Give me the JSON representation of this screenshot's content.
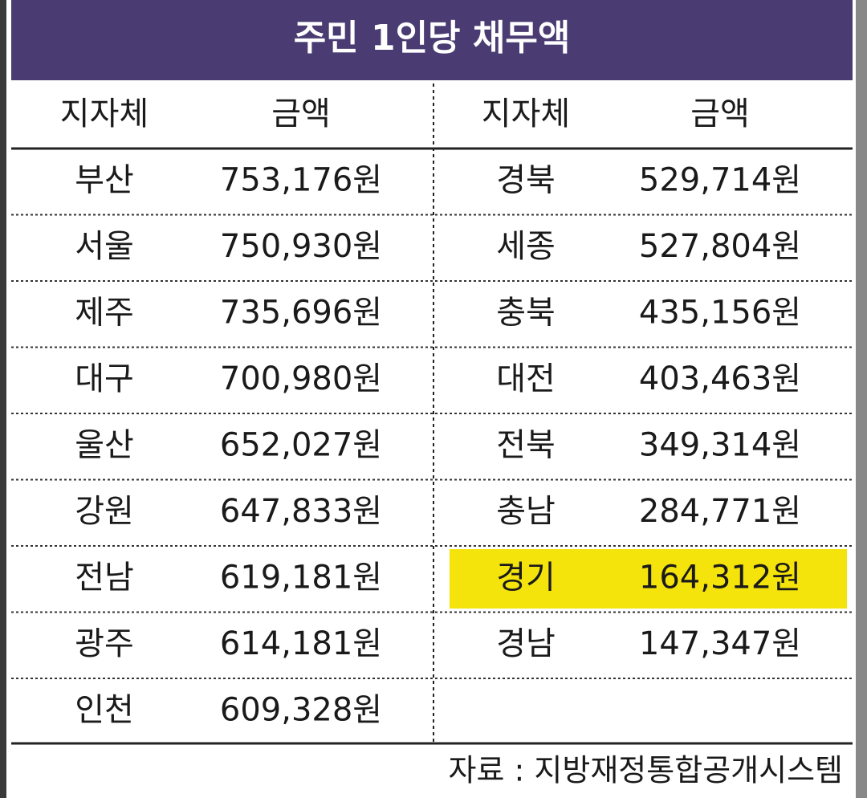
{
  "title": "주민 1인당 채무액",
  "header": [
    "지자체",
    "금액",
    "지자체",
    "금액"
  ],
  "left": [
    {
      "region": "부산",
      "amount": "753,176원"
    },
    {
      "region": "서울",
      "amount": "750,930원"
    },
    {
      "region": "제주",
      "amount": "735,696원"
    },
    {
      "region": "대구",
      "amount": "700,980원"
    },
    {
      "region": "울산",
      "amount": "652,027원"
    },
    {
      "region": "강원",
      "amount": "647,833원"
    },
    {
      "region": "전남",
      "amount": "619,181원"
    },
    {
      "region": "광주",
      "amount": "614,181원"
    },
    {
      "region": "인천",
      "amount": "609,328원"
    }
  ],
  "right": [
    {
      "region": "경북",
      "amount": "529,714원"
    },
    {
      "region": "세종",
      "amount": "527,804원"
    },
    {
      "region": "충북",
      "amount": "435,156원"
    },
    {
      "region": "대전",
      "amount": "403,463원"
    },
    {
      "region": "전북",
      "amount": "349,314원"
    },
    {
      "region": "충남",
      "amount": "284,771원"
    },
    {
      "region": "경기",
      "amount": "164,312원"
    },
    {
      "region": "경남",
      "amount": "147,347원"
    }
  ],
  "source": "자료 : 지방재정통합공개시스템"
}
